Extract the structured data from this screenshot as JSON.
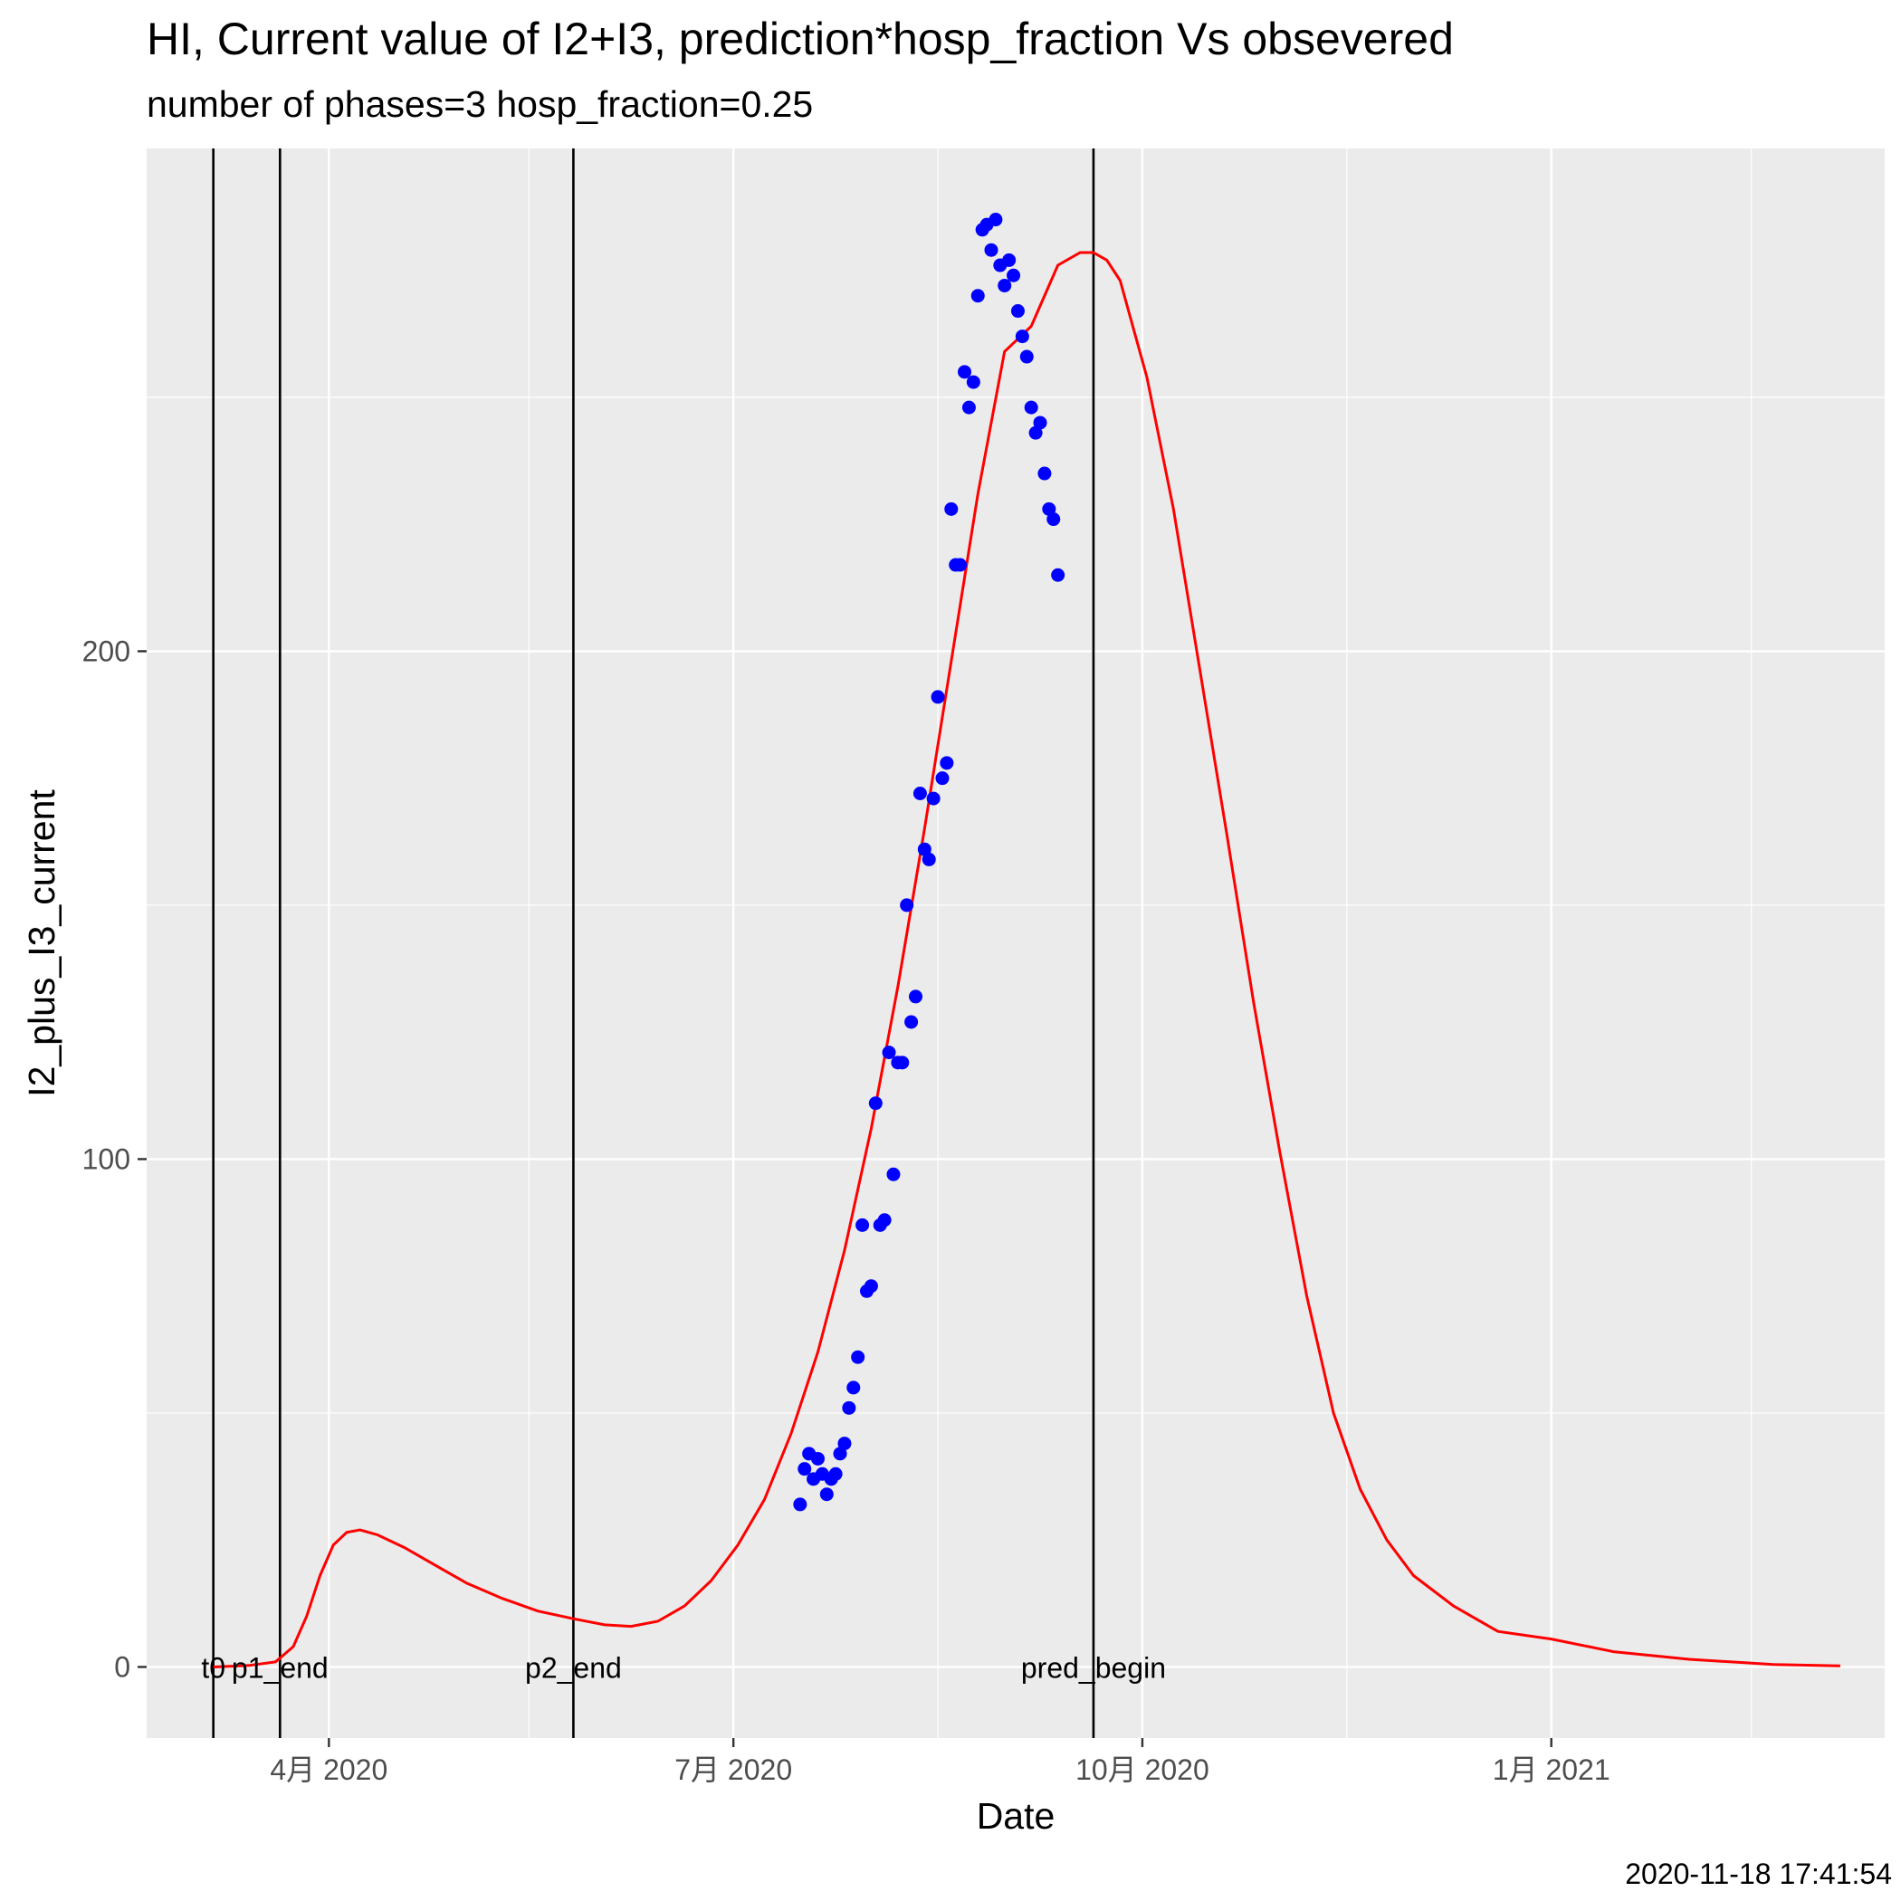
{
  "chart_data": {
    "type": "scatter",
    "title": "HI, Current value of I2+I3, prediction*hosp_fraction Vs obsevered",
    "subtitle": "number of phases=3   hosp_fraction=0.25",
    "xlabel": "Date",
    "ylabel": "I2_plus_I3_current",
    "timestamp": "2020-11-18 17:41:54",
    "xlim": [
      "2020-02-20",
      "2021-03-17"
    ],
    "ylim": [
      -14,
      299
    ],
    "y_ticks": [
      0,
      100,
      200
    ],
    "y_minor_ticks": [
      50,
      150,
      250
    ],
    "x_ticks": [
      {
        "date": "2020-04-01",
        "label": "4月 2020"
      },
      {
        "date": "2020-07-01",
        "label": "7月 2020"
      },
      {
        "date": "2020-10-01",
        "label": "10月 2020"
      },
      {
        "date": "2021-01-01",
        "label": "1月 2021"
      }
    ],
    "x_minor_ticks": [
      "2020-02-15",
      "2020-05-16",
      "2020-08-16",
      "2020-11-16",
      "2021-02-15"
    ],
    "grid": true,
    "vertical_lines": [
      {
        "date": "2020-03-06",
        "label": "t0"
      },
      {
        "date": "2020-03-21",
        "label": "p1_end"
      },
      {
        "date": "2020-05-26",
        "label": "p2_end"
      },
      {
        "date": "2020-09-20",
        "label": "pred_begin"
      }
    ],
    "series": [
      {
        "type": "line",
        "color": "#ff0000",
        "points": [
          [
            "2020-03-06",
            0
          ],
          [
            "2020-03-14",
            0.3
          ],
          [
            "2020-03-20",
            1
          ],
          [
            "2020-03-24",
            4
          ],
          [
            "2020-03-27",
            10
          ],
          [
            "2020-03-30",
            18
          ],
          [
            "2020-04-02",
            24
          ],
          [
            "2020-04-05",
            26.5
          ],
          [
            "2020-04-08",
            27
          ],
          [
            "2020-04-12",
            26
          ],
          [
            "2020-04-18",
            23.5
          ],
          [
            "2020-04-25",
            20
          ],
          [
            "2020-05-02",
            16.5
          ],
          [
            "2020-05-10",
            13.5
          ],
          [
            "2020-05-18",
            11
          ],
          [
            "2020-05-26",
            9.5
          ],
          [
            "2020-06-02",
            8.3
          ],
          [
            "2020-06-08",
            8
          ],
          [
            "2020-06-14",
            9
          ],
          [
            "2020-06-20",
            12
          ],
          [
            "2020-06-26",
            17
          ],
          [
            "2020-07-02",
            24
          ],
          [
            "2020-07-08",
            33
          ],
          [
            "2020-07-14",
            46
          ],
          [
            "2020-07-20",
            62
          ],
          [
            "2020-07-26",
            82
          ],
          [
            "2020-08-01",
            106
          ],
          [
            "2020-08-07",
            134
          ],
          [
            "2020-08-13",
            165
          ],
          [
            "2020-08-19",
            198
          ],
          [
            "2020-08-25",
            231
          ],
          [
            "2020-08-31",
            259
          ],
          [
            "2020-09-06",
            264
          ],
          [
            "2020-09-12",
            276
          ],
          [
            "2020-09-17",
            278.5
          ],
          [
            "2020-09-20",
            278.5
          ],
          [
            "2020-09-23",
            277
          ],
          [
            "2020-09-26",
            273
          ],
          [
            "2020-10-02",
            254
          ],
          [
            "2020-10-08",
            228
          ],
          [
            "2020-10-14",
            196
          ],
          [
            "2020-10-20",
            164
          ],
          [
            "2020-10-26",
            131
          ],
          [
            "2020-11-01",
            101
          ],
          [
            "2020-11-07",
            73
          ],
          [
            "2020-11-13",
            50
          ],
          [
            "2020-11-19",
            35
          ],
          [
            "2020-11-25",
            25
          ],
          [
            "2020-12-01",
            18
          ],
          [
            "2020-12-10",
            12
          ],
          [
            "2020-12-20",
            7
          ],
          [
            "2021-01-01",
            5.5
          ],
          [
            "2021-01-15",
            3
          ],
          [
            "2021-02-01",
            1.5
          ],
          [
            "2021-02-20",
            0.5
          ],
          [
            "2021-03-07",
            0.2
          ]
        ]
      },
      {
        "type": "scatter",
        "color": "#0000ff",
        "points": [
          [
            "2020-07-16",
            32
          ],
          [
            "2020-07-17",
            39
          ],
          [
            "2020-07-18",
            42
          ],
          [
            "2020-07-19",
            37
          ],
          [
            "2020-07-20",
            41
          ],
          [
            "2020-07-21",
            38
          ],
          [
            "2020-07-22",
            34
          ],
          [
            "2020-07-23",
            37
          ],
          [
            "2020-07-24",
            38
          ],
          [
            "2020-07-25",
            42
          ],
          [
            "2020-07-26",
            44
          ],
          [
            "2020-07-27",
            51
          ],
          [
            "2020-07-28",
            55
          ],
          [
            "2020-07-29",
            61
          ],
          [
            "2020-07-30",
            87
          ],
          [
            "2020-07-31",
            74
          ],
          [
            "2020-08-01",
            75
          ],
          [
            "2020-08-02",
            111
          ],
          [
            "2020-08-03",
            87
          ],
          [
            "2020-08-04",
            88
          ],
          [
            "2020-08-05",
            121
          ],
          [
            "2020-08-06",
            97
          ],
          [
            "2020-08-07",
            119
          ],
          [
            "2020-08-08",
            119
          ],
          [
            "2020-08-09",
            150
          ],
          [
            "2020-08-10",
            127
          ],
          [
            "2020-08-11",
            132
          ],
          [
            "2020-08-12",
            172
          ],
          [
            "2020-08-13",
            161
          ],
          [
            "2020-08-14",
            159
          ],
          [
            "2020-08-15",
            171
          ],
          [
            "2020-08-16",
            191
          ],
          [
            "2020-08-17",
            175
          ],
          [
            "2020-08-18",
            178
          ],
          [
            "2020-08-19",
            228
          ],
          [
            "2020-08-20",
            217
          ],
          [
            "2020-08-21",
            217
          ],
          [
            "2020-08-22",
            255
          ],
          [
            "2020-08-23",
            248
          ],
          [
            "2020-08-24",
            253
          ],
          [
            "2020-08-25",
            270
          ],
          [
            "2020-08-26",
            283
          ],
          [
            "2020-08-27",
            284
          ],
          [
            "2020-08-28",
            279
          ],
          [
            "2020-08-29",
            285
          ],
          [
            "2020-08-30",
            276
          ],
          [
            "2020-08-31",
            272
          ],
          [
            "2020-09-01",
            277
          ],
          [
            "2020-09-02",
            274
          ],
          [
            "2020-09-03",
            267
          ],
          [
            "2020-09-04",
            262
          ],
          [
            "2020-09-05",
            258
          ],
          [
            "2020-09-06",
            248
          ],
          [
            "2020-09-07",
            243
          ],
          [
            "2020-09-08",
            245
          ],
          [
            "2020-09-09",
            235
          ],
          [
            "2020-09-10",
            228
          ],
          [
            "2020-09-11",
            226
          ],
          [
            "2020-09-12",
            215
          ]
        ]
      }
    ]
  }
}
